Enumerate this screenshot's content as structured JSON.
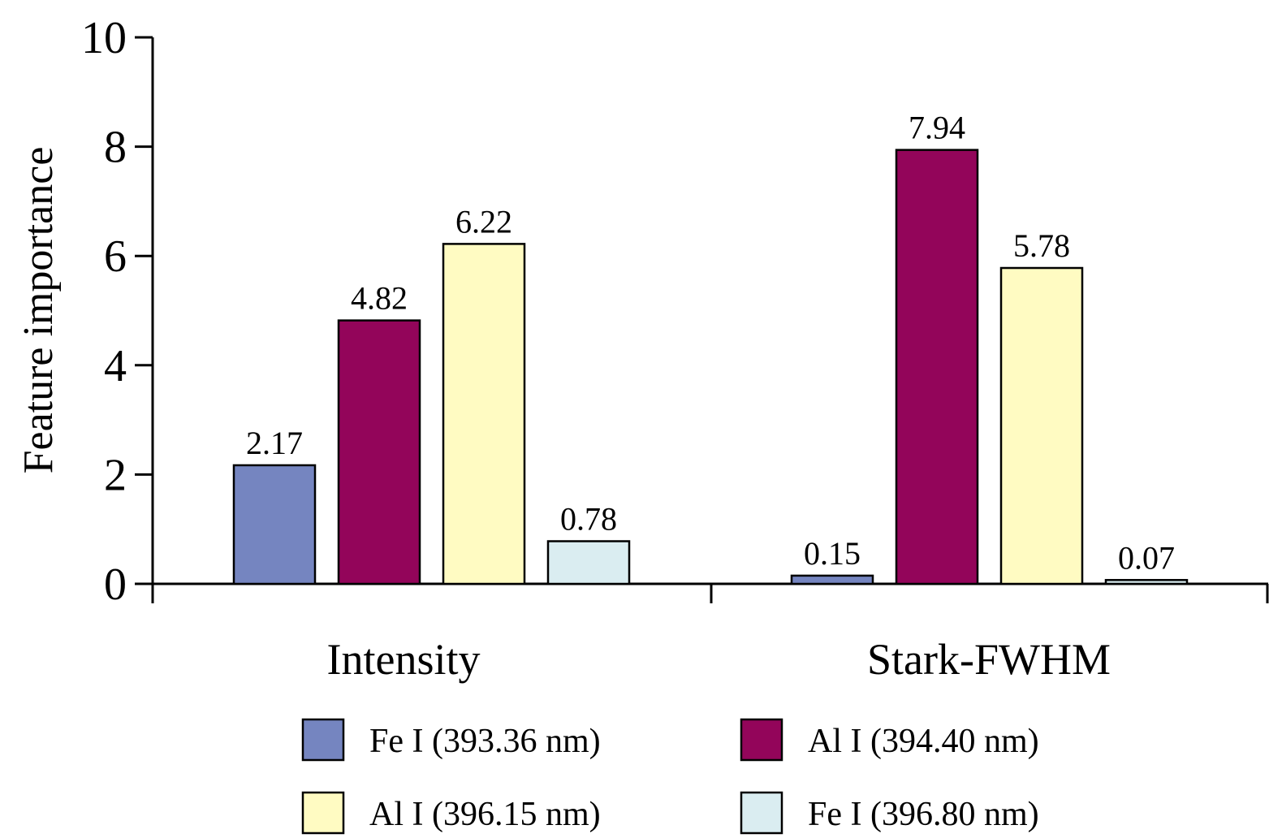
{
  "chart_data": {
    "type": "bar",
    "title": "",
    "xlabel": "",
    "ylabel": "Feature importance",
    "ylim": [
      0,
      10
    ],
    "yticks": [
      "0",
      "2",
      "4",
      "6",
      "8",
      "10"
    ],
    "categories": [
      "Intensity",
      "Stark-FWHM"
    ],
    "series": [
      {
        "name": "Fe I (393.36 nm)",
        "values": [
          2.17,
          0.15
        ],
        "labels": [
          "2.17",
          "0.15"
        ],
        "color": "#7585C0"
      },
      {
        "name": "Al I (394.40 nm)",
        "values": [
          4.82,
          7.94
        ],
        "labels": [
          "4.82",
          "7.94"
        ],
        "color": "#93055A"
      },
      {
        "name": "Al I (396.15 nm)",
        "values": [
          6.22,
          5.78
        ],
        "labels": [
          "6.22",
          "5.78"
        ],
        "color": "#FFFBC2"
      },
      {
        "name": "Fe I (396.80 nm)",
        "values": [
          0.78,
          0.07
        ],
        "labels": [
          "0.78",
          "0.07"
        ],
        "color": "#DAEDF1"
      }
    ],
    "grid": false,
    "legend_position": "bottom"
  }
}
